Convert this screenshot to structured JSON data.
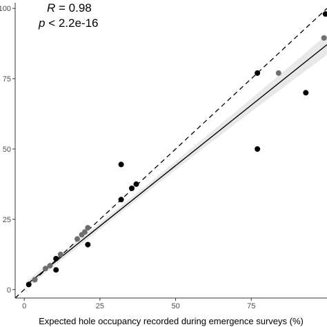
{
  "chart_data": {
    "type": "scatter",
    "title": "",
    "xlabel": "Expected hole occupancy recorded during emergence surveys (%)",
    "ylabel": "",
    "xlim": [
      -3,
      100
    ],
    "ylim": [
      -3,
      102
    ],
    "x_ticks": [
      0,
      25,
      50,
      75
    ],
    "x_tick_labels": [
      "0",
      "25",
      "50",
      "75"
    ],
    "y_ticks": [
      0,
      25,
      50,
      75,
      100
    ],
    "y_tick_labels": [
      "0",
      "25",
      "50",
      "75",
      "100"
    ],
    "grid": false,
    "legend": "none",
    "annotations": {
      "r_symbol": "R",
      "r_value": " = 0.98",
      "p_symbol": "p",
      "p_value": " < 2.2e-16"
    },
    "reference_line": {
      "style": "dashed",
      "slope": 1,
      "intercept": 0
    },
    "regression_line": {
      "slope": 0.86,
      "intercept": 1.1,
      "x_range": [
        1,
        100
      ]
    },
    "confidence_band": {
      "color": "#e8e8e8"
    },
    "colors": {
      "black_points": "#000000",
      "grey_points": "#6e6e6e",
      "regression": "#000000"
    },
    "points": [
      {
        "x": 1.5,
        "y": 1.8,
        "color": "#000000"
      },
      {
        "x": 3.5,
        "y": 3.5,
        "color": "#6e6e6e"
      },
      {
        "x": 7,
        "y": 7.5,
        "color": "#6e6e6e"
      },
      {
        "x": 8.5,
        "y": 8.5,
        "color": "#6e6e6e"
      },
      {
        "x": 10.5,
        "y": 7,
        "color": "#000000"
      },
      {
        "x": 10.5,
        "y": 11,
        "color": "#000000"
      },
      {
        "x": 12,
        "y": 12.5,
        "color": "#6e6e6e"
      },
      {
        "x": 17.5,
        "y": 18,
        "color": "#6e6e6e"
      },
      {
        "x": 19,
        "y": 19.5,
        "color": "#6e6e6e"
      },
      {
        "x": 20,
        "y": 20.5,
        "color": "#6e6e6e"
      },
      {
        "x": 21,
        "y": 16,
        "color": "#000000"
      },
      {
        "x": 21,
        "y": 22,
        "color": "#6e6e6e"
      },
      {
        "x": 32,
        "y": 32,
        "color": "#000000"
      },
      {
        "x": 32,
        "y": 44.5,
        "color": "#000000"
      },
      {
        "x": 35.5,
        "y": 36,
        "color": "#000000"
      },
      {
        "x": 37,
        "y": 37.5,
        "color": "#000000"
      },
      {
        "x": 77,
        "y": 50,
        "color": "#000000"
      },
      {
        "x": 77,
        "y": 77,
        "color": "#000000"
      },
      {
        "x": 84,
        "y": 77,
        "color": "#6e6e6e"
      },
      {
        "x": 93,
        "y": 70,
        "color": "#000000"
      },
      {
        "x": 99,
        "y": 89.5,
        "color": "#6e6e6e"
      },
      {
        "x": 99.5,
        "y": 98,
        "color": "#000000"
      }
    ]
  }
}
